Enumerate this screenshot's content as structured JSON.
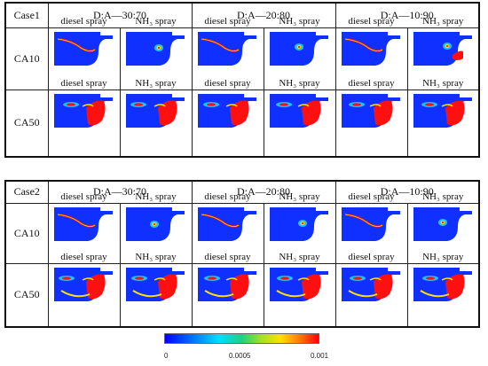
{
  "tables": [
    {
      "case_label": "Case1",
      "ratios": [
        "D:A—30:70",
        "D:A—20:80",
        "D:A—10:90"
      ],
      "rows": [
        {
          "label": "CA10",
          "captions": [
            "diesel spray",
            "NH₃ spray",
            "diesel spray",
            "NH₃ spray",
            "diesel spray",
            "NH₃ spray"
          ]
        },
        {
          "label": "CA50",
          "captions": [
            "diesel spray",
            "NH₃ spray",
            "diesel spray",
            "NH₃ spray",
            "diesel spray",
            "NH₃ spray"
          ]
        }
      ]
    },
    {
      "case_label": "Case2",
      "ratios": [
        "D:A—30:70",
        "D:A—20:80",
        "D:A—10:90"
      ],
      "rows": [
        {
          "label": "CA10",
          "captions": [
            "diesel spray",
            "NH₃ spray",
            "diesel spray",
            "NH₃ spray",
            "diesel spray",
            "NH₃ spray"
          ]
        },
        {
          "label": "CA50",
          "captions": [
            "diesel spray",
            "NH₃ spray",
            "diesel spray",
            "NH₃ spray",
            "diesel spray",
            "NH₃ spray"
          ]
        }
      ]
    }
  ],
  "colorbar": {
    "tick_labels": [
      "0",
      "0.0005",
      "0.001"
    ],
    "colors": [
      "#0000ff",
      "#00e0ff",
      "#20d080",
      "#ffe000",
      "#ff0000"
    ]
  },
  "fields": {
    "chamber_color": "#1030ff",
    "low_color": "#20c0ff",
    "mid_color": "#ffe000",
    "high_color": "#ff1010"
  }
}
